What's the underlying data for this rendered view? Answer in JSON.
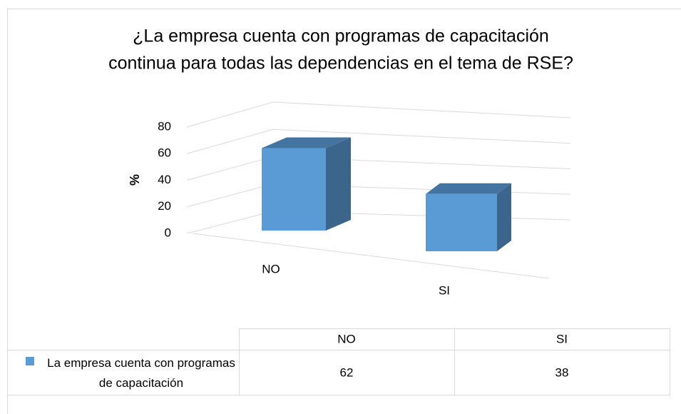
{
  "chart_data": {
    "type": "bar3d",
    "title": [
      "¿La empresa cuenta con programas de capacitación",
      "continua para todas las dependencias en el tema de RSE?"
    ],
    "y_label": "%",
    "categories": [
      "NO",
      "SI"
    ],
    "series": [
      {
        "name": "La empresa cuenta con programas de capacitación",
        "color": "#5b9bd5",
        "values": [
          62,
          38
        ]
      }
    ],
    "ylim": [
      0,
      80
    ],
    "yticks": [
      0,
      20,
      40,
      60,
      80
    ],
    "grid": true,
    "data_table": true
  }
}
